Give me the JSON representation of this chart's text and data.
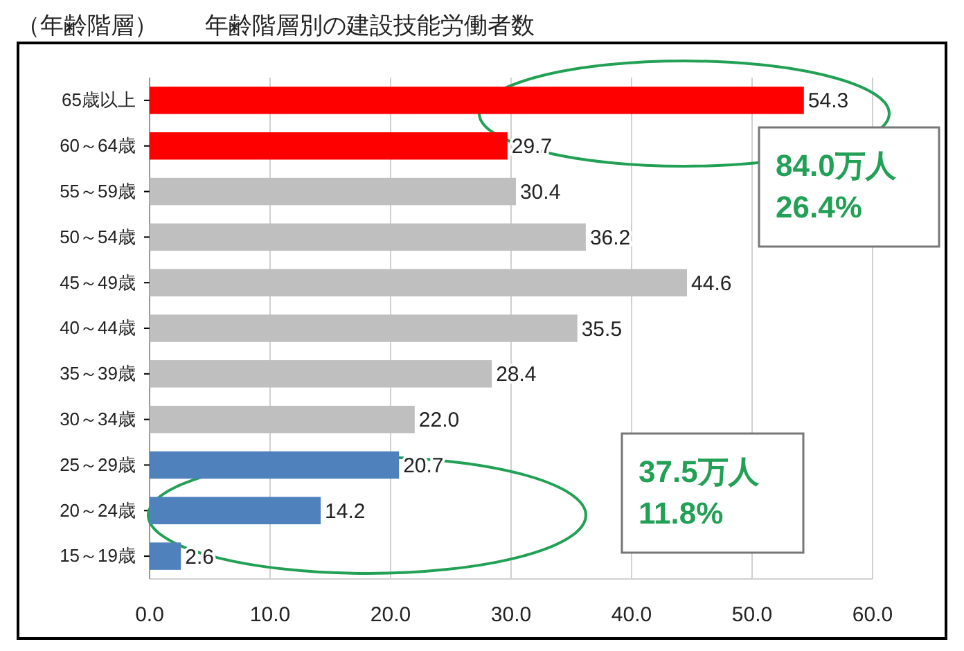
{
  "chart_data": {
    "type": "bar",
    "orientation": "horizontal",
    "title": "年齢階層別の建設技能労働者数",
    "ylabel": "（年齢階層）",
    "categories": [
      "65歳以上",
      "60～64歳",
      "55～59歳",
      "50～54歳",
      "45～49歳",
      "40～44歳",
      "35～39歳",
      "30～34歳",
      "25～29歳",
      "20～24歳",
      "15～19歳"
    ],
    "values": [
      54.3,
      29.7,
      30.4,
      36.2,
      44.6,
      35.5,
      28.4,
      22.0,
      20.7,
      14.2,
      2.6
    ],
    "colors": [
      "#ff0000",
      "#ff0000",
      "#bfbfbf",
      "#bfbfbf",
      "#bfbfbf",
      "#bfbfbf",
      "#bfbfbf",
      "#bfbfbf",
      "#4f81bd",
      "#4f81bd",
      "#4f81bd"
    ],
    "value_labels": [
      "54.3",
      "29.7",
      "30.4",
      "36.2",
      "44.6",
      "35.5",
      "28.4",
      "22.0",
      "20.7",
      "14.2",
      "2.6"
    ],
    "xlim": [
      0,
      60
    ],
    "xticks": [
      {
        "value": 0,
        "label": "0.0"
      },
      {
        "value": 10,
        "label": "10.0"
      },
      {
        "value": 20,
        "label": "20.0"
      },
      {
        "value": 30,
        "label": "30.0"
      },
      {
        "value": 40,
        "label": "40.0"
      },
      {
        "value": 50,
        "label": "50.0"
      },
      {
        "value": 60,
        "label": "60.0"
      }
    ],
    "grid": "x",
    "annotations": [
      "84.0万人\n26.4%",
      "37.5万人\n11.8%"
    ]
  }
}
